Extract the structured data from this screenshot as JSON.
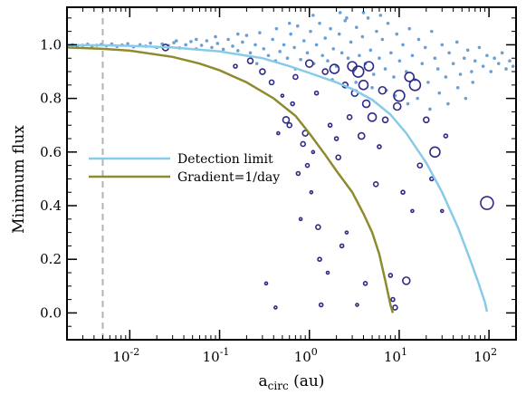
{
  "chart_data": {
    "type": "scatter",
    "xlabel_main": "a",
    "xlabel_sub": "circ",
    "xlabel_unit": " (au)",
    "ylabel": "Minimum flux",
    "xscale": "log",
    "xlim": [
      0.002,
      200
    ],
    "ylim": [
      -0.1,
      1.14
    ],
    "x_tick_labels": [
      {
        "base": "10",
        "exp": "-2",
        "value": 0.01
      },
      {
        "base": "10",
        "exp": "-1",
        "value": 0.1
      },
      {
        "base": "10",
        "exp": "0",
        "value": 1
      },
      {
        "base": "10",
        "exp": "1",
        "value": 10
      },
      {
        "base": "10",
        "exp": "2",
        "value": 100
      }
    ],
    "y_ticks": [
      0.0,
      0.2,
      0.4,
      0.6,
      0.8,
      1.0
    ],
    "y_tick_labels": [
      "0.0",
      "0.2",
      "0.4",
      "0.6",
      "0.8",
      "1.0"
    ],
    "vertical_line_x": 0.005,
    "legend_position": "center-left",
    "series": [
      {
        "name": "Detection limit",
        "kind": "line",
        "color": "#87cbe8",
        "points": [
          [
            0.002,
            0.999
          ],
          [
            0.005,
            0.998
          ],
          [
            0.01,
            0.996
          ],
          [
            0.03,
            0.99
          ],
          [
            0.1,
            0.975
          ],
          [
            0.3,
            0.95
          ],
          [
            0.6,
            0.92
          ],
          [
            1,
            0.895
          ],
          [
            2,
            0.86
          ],
          [
            3,
            0.835
          ],
          [
            5,
            0.795
          ],
          [
            8,
            0.74
          ],
          [
            12,
            0.67
          ],
          [
            20,
            0.56
          ],
          [
            30,
            0.45
          ],
          [
            45,
            0.32
          ],
          [
            60,
            0.21
          ],
          [
            75,
            0.12
          ],
          [
            90,
            0.04
          ],
          [
            95,
            0.005
          ]
        ]
      },
      {
        "name": "Gradient=1/day",
        "kind": "line",
        "color": "#8e8b2e",
        "points": [
          [
            0.002,
            0.99
          ],
          [
            0.005,
            0.985
          ],
          [
            0.01,
            0.978
          ],
          [
            0.03,
            0.955
          ],
          [
            0.06,
            0.93
          ],
          [
            0.1,
            0.905
          ],
          [
            0.2,
            0.86
          ],
          [
            0.4,
            0.8
          ],
          [
            0.7,
            0.735
          ],
          [
            1,
            0.67
          ],
          [
            1.5,
            0.59
          ],
          [
            2,
            0.53
          ],
          [
            3,
            0.45
          ],
          [
            4,
            0.37
          ],
          [
            5,
            0.3
          ],
          [
            6,
            0.22
          ],
          [
            7,
            0.12
          ],
          [
            8,
            0.03
          ],
          [
            8.5,
            0.0
          ]
        ]
      },
      {
        "name": "",
        "kind": "small-dots",
        "color": "#6a9fd6",
        "points": [
          [
            0.0023,
            1.0
          ],
          [
            0.0026,
            0.995
          ],
          [
            0.003,
            0.998
          ],
          [
            0.0034,
            1.002
          ],
          [
            0.0038,
            0.993
          ],
          [
            0.0043,
            0.998
          ],
          [
            0.0048,
            1.001
          ],
          [
            0.0055,
            0.996
          ],
          [
            0.0063,
            1.003
          ],
          [
            0.0072,
            0.994
          ],
          [
            0.0082,
            0.999
          ],
          [
            0.0095,
            1.004
          ],
          [
            0.011,
            0.992
          ],
          [
            0.013,
            1.0
          ],
          [
            0.015,
            0.995
          ],
          [
            0.017,
            1.006
          ],
          [
            0.02,
            0.99
          ],
          [
            0.023,
            1.003
          ],
          [
            0.027,
            0.997
          ],
          [
            0.031,
            1.008
          ],
          [
            0.036,
            0.988
          ],
          [
            0.042,
            1.0
          ],
          [
            0.048,
            1.012
          ],
          [
            0.055,
            0.985
          ],
          [
            0.063,
            0.998
          ],
          [
            0.072,
            1.015
          ],
          [
            0.082,
            0.99
          ],
          [
            0.095,
            1.005
          ],
          [
            0.11,
            0.983
          ],
          [
            0.125,
            1.02
          ],
          [
            0.14,
            0.995
          ],
          [
            0.16,
            0.978
          ],
          [
            0.18,
            1.01
          ],
          [
            0.2,
            1.035
          ],
          [
            0.22,
            0.97
          ],
          [
            0.25,
            1.0
          ],
          [
            0.28,
            1.045
          ],
          [
            0.31,
            0.985
          ],
          [
            0.35,
            0.96
          ],
          [
            0.39,
            1.02
          ],
          [
            0.43,
            1.06
          ],
          [
            0.47,
            0.975
          ],
          [
            0.52,
            1.0
          ],
          [
            0.57,
            0.95
          ],
          [
            0.62,
            1.04
          ],
          [
            0.68,
            0.99
          ],
          [
            0.74,
            1.07
          ],
          [
            0.8,
            0.945
          ],
          [
            0.87,
            1.015
          ],
          [
            0.95,
            0.97
          ],
          [
            1.03,
            1.05
          ],
          [
            1.12,
            0.93
          ],
          [
            1.2,
            1.0
          ],
          [
            1.3,
            1.08
          ],
          [
            1.4,
            0.96
          ],
          [
            1.5,
            1.025
          ],
          [
            1.6,
            0.94
          ],
          [
            1.72,
            1.06
          ],
          [
            1.85,
            0.985
          ],
          [
            2.0,
            0.92
          ],
          [
            2.15,
            1.04
          ],
          [
            2.3,
            0.97
          ],
          [
            2.5,
            1.09
          ],
          [
            2.7,
            0.95
          ],
          [
            2.9,
            1.01
          ],
          [
            3.1,
            0.9
          ],
          [
            3.35,
            1.065
          ],
          [
            3.6,
            0.96
          ],
          [
            3.9,
            1.03
          ],
          [
            4.2,
            0.93
          ],
          [
            4.5,
            1.1
          ],
          [
            4.8,
            0.98
          ],
          [
            5.2,
            0.89
          ],
          [
            5.6,
            1.05
          ],
          [
            6.0,
            0.95
          ],
          [
            6.5,
            1.02
          ],
          [
            7.0,
            0.91
          ],
          [
            7.5,
            1.08
          ],
          [
            8.1,
            0.97
          ],
          [
            8.7,
            0.88
          ],
          [
            9.4,
            1.04
          ],
          [
            10.1,
            0.94
          ],
          [
            11,
            1.0
          ],
          [
            12,
            0.9
          ],
          [
            13,
            1.06
          ],
          [
            14,
            0.96
          ],
          [
            15,
            0.87
          ],
          [
            16.5,
            1.02
          ],
          [
            18,
            0.93
          ],
          [
            19.5,
            0.99
          ],
          [
            21,
            0.86
          ],
          [
            23,
            1.05
          ],
          [
            25,
            0.95
          ],
          [
            27,
            0.91
          ],
          [
            30,
            1.0
          ],
          [
            33,
            0.88
          ],
          [
            36,
            0.97
          ],
          [
            40,
            0.93
          ],
          [
            44,
            1.01
          ],
          [
            48,
            0.89
          ],
          [
            53,
            0.95
          ],
          [
            58,
            0.98
          ],
          [
            64,
            0.9
          ],
          [
            70,
            0.94
          ],
          [
            78,
            0.99
          ],
          [
            86,
            0.92
          ],
          [
            95,
            0.96
          ],
          [
            105,
            0.9
          ],
          [
            115,
            0.95
          ],
          [
            128,
            0.93
          ],
          [
            140,
            0.97
          ],
          [
            155,
            0.91
          ],
          [
            170,
            0.94
          ],
          [
            185,
            0.92
          ],
          [
            0.6,
            1.08
          ],
          [
            1.1,
            1.11
          ],
          [
            2.2,
            1.12
          ],
          [
            3.3,
            0.86
          ],
          [
            5.0,
            0.84
          ],
          [
            7.2,
            0.83
          ],
          [
            9.0,
            0.81
          ],
          [
            12.5,
            0.78
          ],
          [
            16,
            0.8
          ],
          [
            22,
            0.76
          ],
          [
            28,
            0.82
          ],
          [
            35,
            0.78
          ],
          [
            45,
            0.84
          ],
          [
            55,
            0.8
          ],
          [
            66,
            0.86
          ],
          [
            1.8,
            0.87
          ],
          [
            2.6,
            1.1
          ],
          [
            4.0,
            1.12
          ],
          [
            6.2,
            1.11
          ],
          [
            0.26,
            0.93
          ],
          [
            0.42,
            0.94
          ],
          [
            0.7,
            0.91
          ],
          [
            0.16,
            1.04
          ],
          [
            0.09,
            1.03
          ],
          [
            0.055,
            1.02
          ],
          [
            0.033,
            1.015
          ]
        ]
      },
      {
        "name": "",
        "kind": "open-circles",
        "color": "#2e2a86",
        "points": [
          [
            0.025,
            0.99,
            3.5
          ],
          [
            0.15,
            0.92,
            2
          ],
          [
            0.22,
            0.94,
            3
          ],
          [
            0.3,
            0.9,
            3
          ],
          [
            0.38,
            0.86,
            2.5
          ],
          [
            0.42,
            0.02,
            1.5
          ],
          [
            0.55,
            0.72,
            3.5
          ],
          [
            0.6,
            0.7,
            2.5
          ],
          [
            0.65,
            0.78,
            2
          ],
          [
            0.7,
            0.88,
            2.5
          ],
          [
            0.75,
            0.52,
            2
          ],
          [
            0.8,
            0.35,
            1.5
          ],
          [
            0.85,
            0.63,
            2.5
          ],
          [
            0.9,
            0.67,
            3
          ],
          [
            0.95,
            0.55,
            2
          ],
          [
            1.0,
            0.93,
            4
          ],
          [
            1.05,
            0.45,
            1.5
          ],
          [
            1.1,
            0.6,
            1.5
          ],
          [
            1.2,
            0.82,
            2
          ],
          [
            1.25,
            0.32,
            2.5
          ],
          [
            1.3,
            0.2,
            2
          ],
          [
            1.35,
            0.03,
            2
          ],
          [
            1.5,
            0.9,
            3
          ],
          [
            1.7,
            0.7,
            2
          ],
          [
            1.9,
            0.91,
            5
          ],
          [
            2.0,
            0.65,
            2
          ],
          [
            2.1,
            0.58,
            2.5
          ],
          [
            2.3,
            0.25,
            2
          ],
          [
            2.5,
            0.85,
            3
          ],
          [
            2.8,
            0.73,
            2.5
          ],
          [
            3.0,
            0.92,
            5
          ],
          [
            3.2,
            0.82,
            3.5
          ],
          [
            3.5,
            0.9,
            6
          ],
          [
            3.8,
            0.66,
            3.5
          ],
          [
            4.0,
            0.85,
            5
          ],
          [
            4.3,
            0.78,
            4
          ],
          [
            4.6,
            0.92,
            5
          ],
          [
            5.0,
            0.73,
            4.5
          ],
          [
            5.5,
            0.48,
            2.5
          ],
          [
            6.0,
            0.62,
            2
          ],
          [
            6.5,
            0.83,
            4
          ],
          [
            7.0,
            0.72,
            3
          ],
          [
            8.0,
            0.14,
            2
          ],
          [
            8.5,
            0.05,
            2
          ],
          [
            9.0,
            0.02,
            2.5
          ],
          [
            9.5,
            0.77,
            4
          ],
          [
            10.0,
            0.81,
            6
          ],
          [
            11.0,
            0.45,
            2
          ],
          [
            12.0,
            0.12,
            4
          ],
          [
            13.0,
            0.88,
            5
          ],
          [
            14.0,
            0.38,
            1.5
          ],
          [
            15.0,
            0.85,
            6
          ],
          [
            17.0,
            0.55,
            2.5
          ],
          [
            20.0,
            0.72,
            3
          ],
          [
            23.0,
            0.5,
            2
          ],
          [
            25.0,
            0.6,
            5.5
          ],
          [
            30.0,
            0.38,
            1.5
          ],
          [
            33.0,
            0.66,
            2
          ],
          [
            95.0,
            0.41,
            7
          ],
          [
            0.5,
            0.81,
            1.5
          ],
          [
            0.45,
            0.67,
            1.5
          ],
          [
            0.33,
            0.11,
            1.5
          ],
          [
            1.6,
            0.15,
            1.5
          ],
          [
            2.6,
            0.3,
            1.5
          ],
          [
            3.4,
            0.03,
            1.5
          ],
          [
            4.2,
            0.11,
            2
          ]
        ]
      }
    ]
  }
}
